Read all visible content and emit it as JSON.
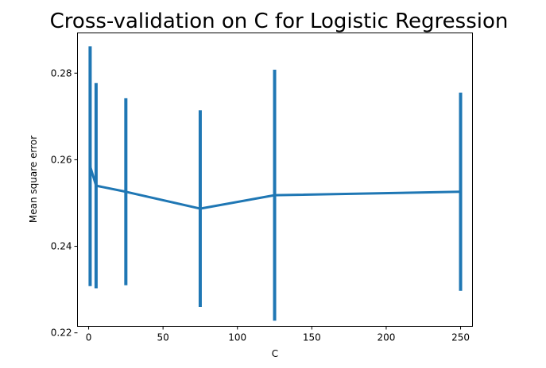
{
  "chart_data": {
    "type": "line",
    "title": "Cross-validation on C for Logistic Regression",
    "xlabel": "C",
    "ylabel": "Mean square error",
    "xlim": [
      -7.5,
      258
    ],
    "ylim": [
      0.2215,
      0.2893
    ],
    "xticks": [
      0,
      50,
      100,
      150,
      200,
      250
    ],
    "yticks": [
      0.22,
      0.24,
      0.26,
      0.28
    ],
    "ytick_labels": [
      "0.22",
      "0.24",
      "0.26",
      "0.28"
    ],
    "grid": false,
    "series": [
      {
        "color": "#1f77b4",
        "error_bars": true,
        "points": [
          {
            "x": 1,
            "y": 0.2585,
            "err": 0.0277
          },
          {
            "x": 5,
            "y": 0.254,
            "err": 0.0237
          },
          {
            "x": 25,
            "y": 0.2526,
            "err": 0.0216
          },
          {
            "x": 75,
            "y": 0.2487,
            "err": 0.0227
          },
          {
            "x": 125,
            "y": 0.2518,
            "err": 0.029
          },
          {
            "x": 250,
            "y": 0.2526,
            "err": 0.0229
          }
        ]
      }
    ]
  }
}
